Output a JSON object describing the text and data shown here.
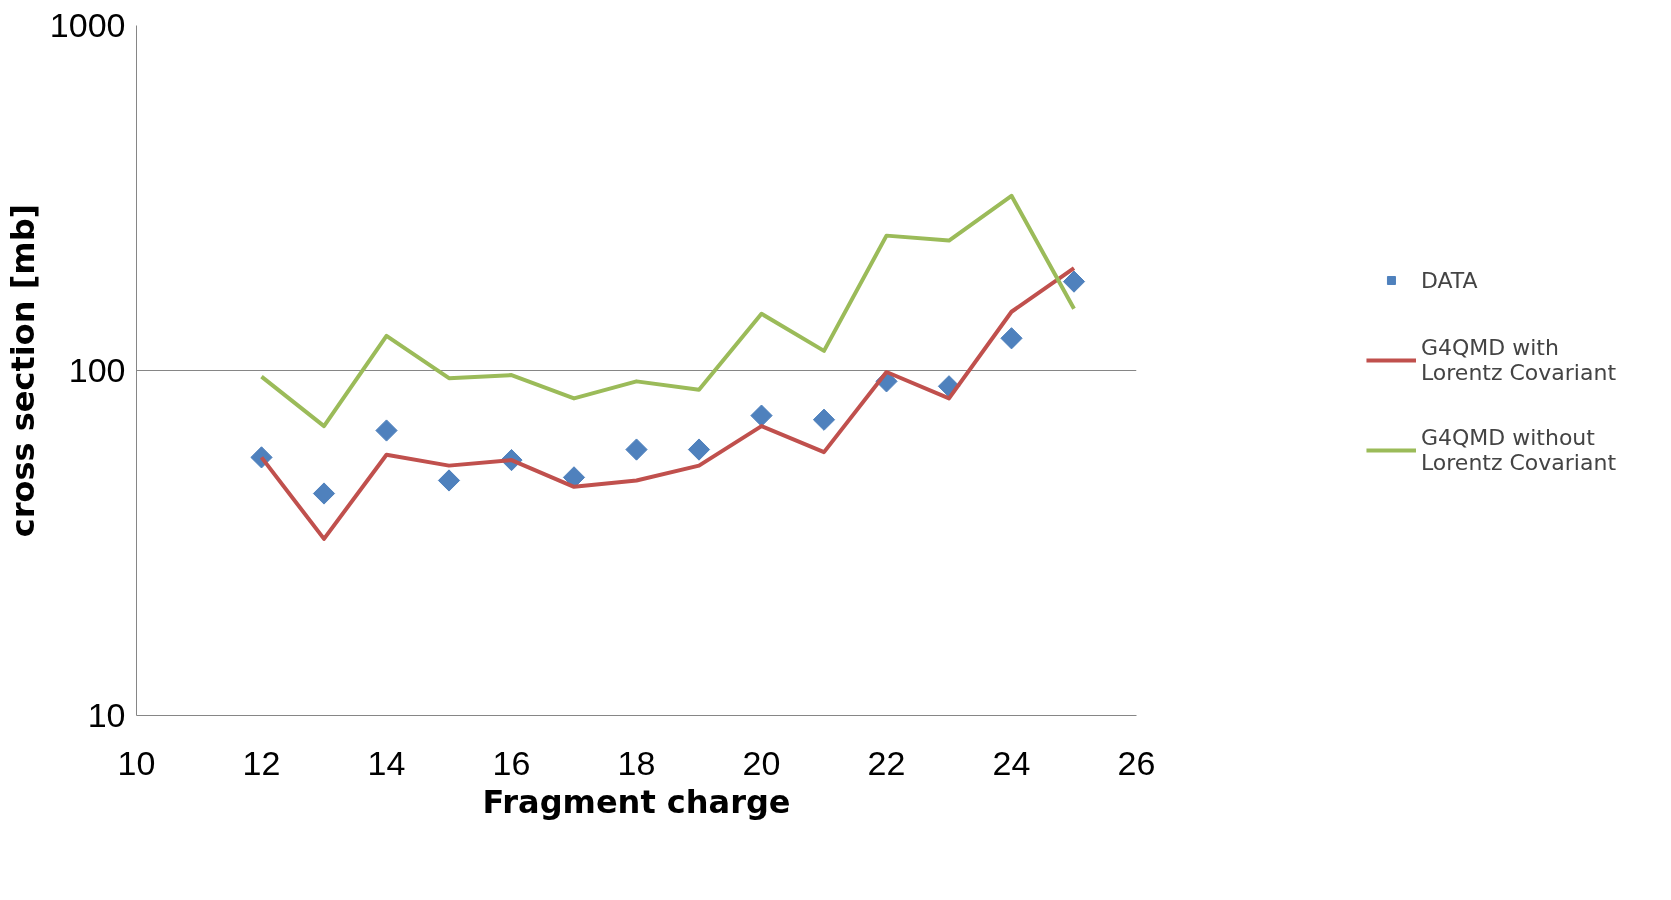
{
  "chart_data": {
    "type": "line",
    "xlabel": "Fragment charge",
    "ylabel": "cross section [mb]",
    "x": [
      12,
      13,
      14,
      15,
      16,
      17,
      18,
      19,
      20,
      21,
      22,
      23,
      24,
      25
    ],
    "series": [
      {
        "name": "DATA",
        "type": "scatter",
        "marker": "diamond",
        "color": "#4f81bd",
        "values": [
          56,
          44,
          67,
          48,
          55,
          49,
          59,
          59,
          74,
          72,
          93,
          90,
          124,
          181
        ]
      },
      {
        "name": "G4QMD with Lorentz Covariant",
        "color": "#c0504d",
        "values": [
          56,
          32.5,
          57,
          53,
          55,
          46,
          48,
          53,
          69,
          58,
          99,
          83,
          148,
          198
        ]
      },
      {
        "name": "G4QMD without Lorentz Covariant",
        "color": "#9bbb59",
        "values": [
          96,
          69,
          126,
          95,
          97,
          83,
          93,
          88,
          146,
          114,
          246,
          238,
          321,
          151
        ]
      }
    ],
    "log": "y",
    "xlim": [
      10,
      26
    ],
    "xticks": [
      10,
      12,
      14,
      16,
      18,
      20,
      22,
      24,
      26
    ],
    "ylim": [
      10,
      1000
    ],
    "yticks": [
      10,
      100,
      1000
    ],
    "grid": "y",
    "legend": "right"
  }
}
